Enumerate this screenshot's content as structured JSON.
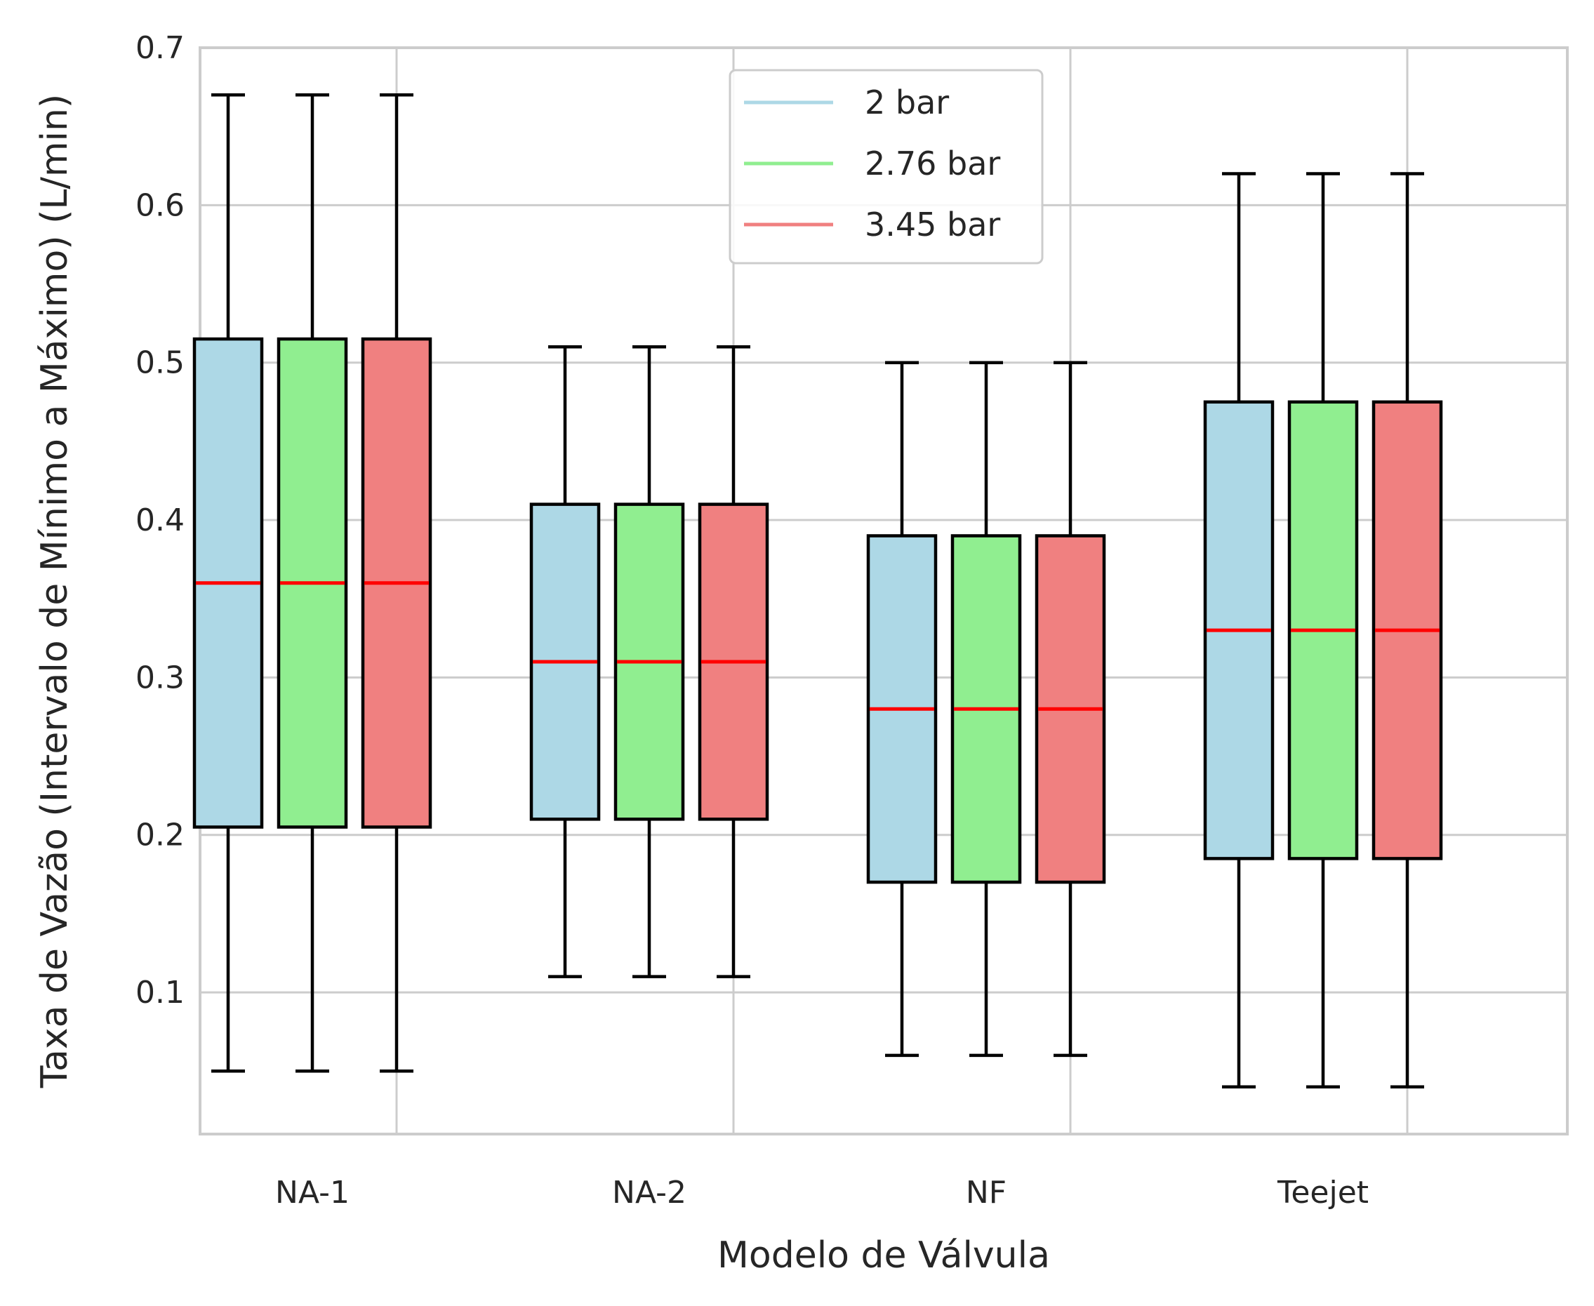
{
  "chart_data": {
    "type": "boxplot",
    "title": "",
    "xlabel": "Modelo de Válvula",
    "ylabel": "Taxa de Vazão (Intervalo de Mínimo a Máximo) (L/min)",
    "ylim": [
      0.01,
      0.7
    ],
    "yticks": [
      "0.1",
      "0.2",
      "0.3",
      "0.4",
      "0.5",
      "0.6",
      "0.7"
    ],
    "categories": [
      "NA-1",
      "NA-2",
      "NF",
      "Teejet"
    ],
    "grid": true,
    "legend_position": "top-center",
    "series": [
      {
        "name": "2 bar",
        "color": "#add8e6",
        "boxes": [
          {
            "min": 0.05,
            "q1": 0.205,
            "median": 0.36,
            "q3": 0.515,
            "max": 0.67
          },
          {
            "min": 0.11,
            "q1": 0.21,
            "median": 0.31,
            "q3": 0.41,
            "max": 0.51
          },
          {
            "min": 0.06,
            "q1": 0.17,
            "median": 0.28,
            "q3": 0.39,
            "max": 0.5
          },
          {
            "min": 0.04,
            "q1": 0.185,
            "median": 0.33,
            "q3": 0.475,
            "max": 0.62
          }
        ]
      },
      {
        "name": "2.76 bar",
        "color": "#90ee90",
        "boxes": [
          {
            "min": 0.05,
            "q1": 0.205,
            "median": 0.36,
            "q3": 0.515,
            "max": 0.67
          },
          {
            "min": 0.11,
            "q1": 0.21,
            "median": 0.31,
            "q3": 0.41,
            "max": 0.51
          },
          {
            "min": 0.06,
            "q1": 0.17,
            "median": 0.28,
            "q3": 0.39,
            "max": 0.5
          },
          {
            "min": 0.04,
            "q1": 0.185,
            "median": 0.33,
            "q3": 0.475,
            "max": 0.62
          }
        ]
      },
      {
        "name": "3.45 bar",
        "color": "#f08080",
        "boxes": [
          {
            "min": 0.05,
            "q1": 0.205,
            "median": 0.36,
            "q3": 0.515,
            "max": 0.67
          },
          {
            "min": 0.11,
            "q1": 0.21,
            "median": 0.31,
            "q3": 0.41,
            "max": 0.51
          },
          {
            "min": 0.06,
            "q1": 0.17,
            "median": 0.28,
            "q3": 0.39,
            "max": 0.5
          },
          {
            "min": 0.04,
            "q1": 0.185,
            "median": 0.33,
            "q3": 0.475,
            "max": 0.62
          }
        ]
      }
    ],
    "median_color": "#ff0000",
    "edge_color": "#000000",
    "grid_color": "#cccccc"
  }
}
